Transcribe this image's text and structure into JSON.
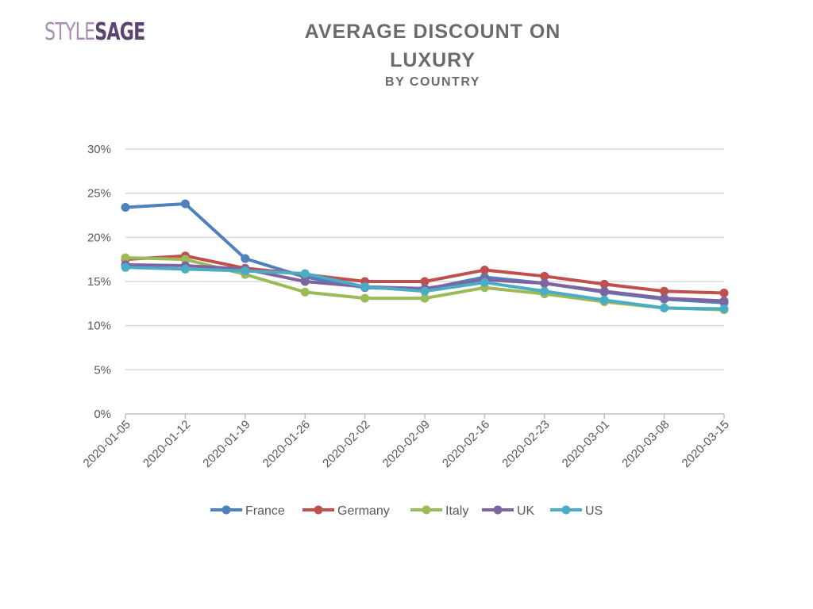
{
  "logo": {
    "part1": "STYLE",
    "part2": "SAGE"
  },
  "title_line1": "AVERAGE DISCOUNT ON",
  "title_line2": "LUXURY",
  "subtitle": "BY COUNTRY",
  "chart_data": {
    "type": "line",
    "title": "AVERAGE DISCOUNT ON LUXURY",
    "subtitle": "BY COUNTRY",
    "x": [
      "2020-01-05",
      "2020-01-12",
      "2020-01-19",
      "2020-01-26",
      "2020-02-02",
      "2020-02-09",
      "2020-02-16",
      "2020-02-23",
      "2020-03-01",
      "2020-03-08",
      "2020-03-15"
    ],
    "y_ticks": [
      "0%",
      "5%",
      "10%",
      "15%",
      "20%",
      "25%",
      "30%"
    ],
    "ylim": [
      0,
      30
    ],
    "grid": true,
    "legend_position": "bottom",
    "series": [
      {
        "name": "France",
        "color": "#4f81bd",
        "values": [
          23.4,
          23.8,
          17.6,
          15.5,
          14.3,
          14.1,
          15.5,
          14.8,
          13.8,
          13.0,
          12.6
        ]
      },
      {
        "name": "Germany",
        "color": "#c0504d",
        "values": [
          17.5,
          17.9,
          16.5,
          15.8,
          15.0,
          15.0,
          16.3,
          15.6,
          14.7,
          13.9,
          13.7
        ]
      },
      {
        "name": "Italy",
        "color": "#9bbb59",
        "values": [
          17.7,
          17.5,
          15.8,
          13.8,
          13.1,
          13.1,
          14.3,
          13.6,
          12.7,
          12.0,
          11.8
        ]
      },
      {
        "name": "UK",
        "color": "#8064a2",
        "values": [
          16.9,
          16.8,
          16.4,
          15.0,
          14.4,
          14.2,
          15.2,
          14.8,
          13.9,
          13.1,
          12.8
        ]
      },
      {
        "name": "US",
        "color": "#4bacc6",
        "values": [
          16.6,
          16.4,
          16.2,
          15.9,
          14.4,
          13.9,
          14.9,
          13.9,
          12.9,
          12.0,
          11.9
        ]
      }
    ]
  }
}
